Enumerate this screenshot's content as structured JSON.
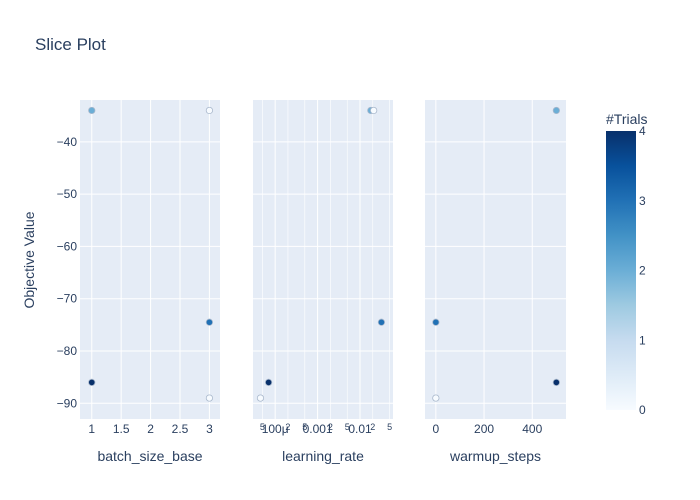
{
  "chart_data": {
    "type": "scatter",
    "title": "Slice Plot",
    "ylabel": "Objective Value",
    "ylim": [
      -93,
      -32
    ],
    "y_ticks": [
      -40,
      -50,
      -60,
      -70,
      -80,
      -90
    ],
    "y_tick_labels": [
      "−40",
      "−50",
      "−60",
      "−70",
      "−80",
      "−90"
    ],
    "colorbar": {
      "title": "#Trials",
      "range": [
        0,
        4
      ],
      "ticks": [
        0,
        1,
        2,
        3,
        4
      ],
      "tick_labels": [
        "0",
        "1",
        "2",
        "3",
        "4"
      ],
      "colors": [
        "#f7fbff",
        "#deebf7",
        "#c6dbef",
        "#9ecae1",
        "#6baed6",
        "#4292c6",
        "#2171b5",
        "#08519c",
        "#08306b"
      ]
    },
    "subplots": [
      {
        "xlabel": "batch_size_base",
        "scale": "linear",
        "xlim": [
          0.8,
          3.18
        ],
        "x_ticks": [
          1,
          1.5,
          2,
          2.5,
          3
        ],
        "x_tick_labels": [
          "1",
          "1.5",
          "2",
          "2.5",
          "3"
        ],
        "points": [
          {
            "x": 1,
            "y": -34,
            "trial": 2
          },
          {
            "x": 1,
            "y": -86,
            "trial": 4
          },
          {
            "x": 3,
            "y": -34,
            "trial": 0
          },
          {
            "x": 3,
            "y": -74.5,
            "trial": 3
          },
          {
            "x": 3,
            "y": -89,
            "trial": 0
          }
        ]
      },
      {
        "xlabel": "learning_rate",
        "scale": "log",
        "xlim": [
          3e-05,
          0.06
        ],
        "x_ticks": [
          5e-05,
          0.0001,
          0.0002,
          0.0005,
          0.001,
          0.002,
          0.005,
          0.01,
          0.02,
          0.05
        ],
        "x_tick_labels": [
          "5",
          "100μ",
          "2",
          "5",
          "0.001",
          "2",
          "5",
          "0.01",
          "2",
          "5"
        ],
        "x_tick_major": [
          false,
          true,
          false,
          false,
          true,
          false,
          false,
          true,
          false,
          false
        ],
        "points": [
          {
            "x": 0.018,
            "y": -34,
            "trial": 2
          },
          {
            "x": 0.021,
            "y": -34,
            "trial": 0
          },
          {
            "x": 0.032,
            "y": -74.5,
            "trial": 3
          },
          {
            "x": 7e-05,
            "y": -86,
            "trial": 4
          },
          {
            "x": 4.5e-05,
            "y": -89,
            "trial": 0
          }
        ]
      },
      {
        "xlabel": "warmup_steps",
        "scale": "linear",
        "xlim": [
          -45,
          540
        ],
        "x_ticks": [
          0,
          200,
          400
        ],
        "x_tick_labels": [
          "0",
          "200",
          "400"
        ],
        "points": [
          {
            "x": 500,
            "y": -34,
            "trial": 2
          },
          {
            "x": 0,
            "y": -74.5,
            "trial": 3
          },
          {
            "x": 500,
            "y": -86,
            "trial": 4
          },
          {
            "x": 0,
            "y": -89,
            "trial": 0
          }
        ]
      }
    ]
  }
}
